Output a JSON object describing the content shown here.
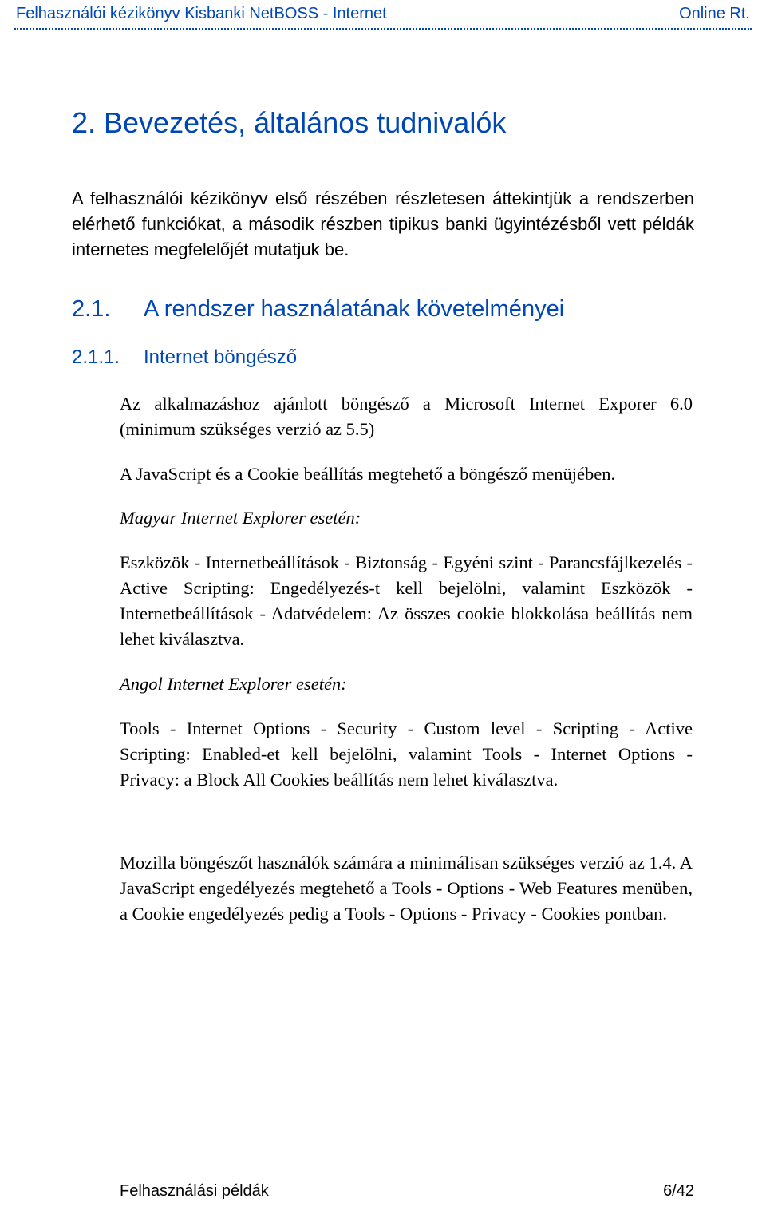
{
  "colors": {
    "accent": "#0047b6",
    "text": "#000000",
    "background": "#ffffff"
  },
  "typography": {
    "heading_font": "Arial",
    "body_font": "Georgia",
    "h1_size_pt": 27,
    "h2_size_pt": 22,
    "h3_size_pt": 18,
    "body_size_pt": 17
  },
  "header": {
    "left": "Felhasználói kézikönyv Kisbanki NetBOSS - Internet",
    "right": "Online Rt."
  },
  "section": {
    "h1": "2. Bevezetés, általános tudnivalók",
    "intro": "A felhasználói kézikönyv első részében részletesen áttekintjük a rendszerben elérhető funkciókat, a második részben tipikus banki ügyintézésből vett példák internetes megfelelőjét mutatjuk be.",
    "h2_num": "2.1.",
    "h2_text": "A rendszer használatának követelményei",
    "h3_num": "2.1.1.",
    "h3_text": "Internet böngésző",
    "p1": "Az alkalmazáshoz ajánlott böngésző a Microsoft Internet Exporer 6.0 (minimum szükséges verzió az 5.5)",
    "p2": "A JavaScript és a Cookie beállítás megtehető a böngésző menüjében.",
    "p3": "Magyar Internet Explorer esetén:",
    "p4": "Eszközök - Internetbeállítások - Biztonság - Egyéni szint - Parancsfájlkezelés - Active Scripting: Engedélyezés-t kell bejelölni, valamint Eszközök - Internetbeállítások - Adatvédelem: Az összes cookie blokkolása beállítás nem lehet kiválasztva.",
    "p5": "Angol Internet Explorer esetén:",
    "p6": "Tools - Internet Options - Security - Custom level - Scripting - Active Scripting: Enabled-et kell bejelölni, valamint Tools - Internet Options - Privacy: a Block All Cookies beállítás nem lehet kiválasztva.",
    "p7": "Mozilla böngészőt használók számára a minimálisan szükséges verzió az 1.4. A JavaScript engedélyezés megtehető a Tools - Options - Web Features menüben, a Cookie engedélyezés pedig a Tools - Options - Privacy - Cookies pontban."
  },
  "footer": {
    "left": "Felhasználási példák",
    "right": "6/42"
  }
}
